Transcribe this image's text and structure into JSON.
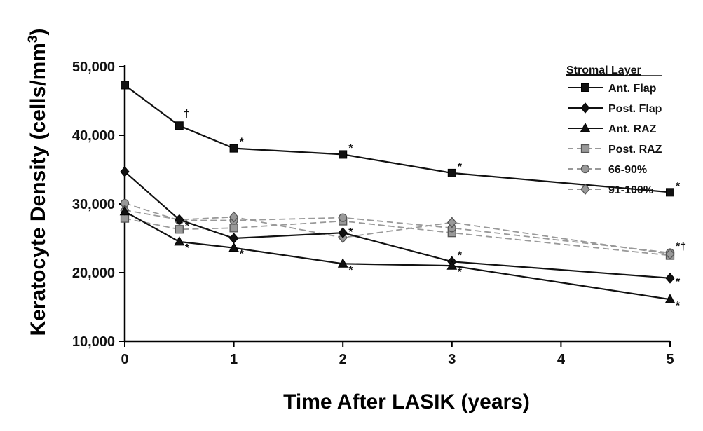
{
  "chart_data": {
    "type": "line",
    "ylabel": "Keratocyte Density (cells/mm",
    "ylabel_sup": "3",
    "ylabel_close": ")",
    "xlabel": "Time After LASIK (years)",
    "xlim": [
      0,
      5
    ],
    "ylim": [
      10000,
      50000
    ],
    "xticks": [
      0,
      1,
      2,
      3,
      4,
      5
    ],
    "xtick_labels": [
      "0",
      "1",
      "2",
      "3",
      "4",
      "5"
    ],
    "yticks": [
      10000,
      20000,
      30000,
      40000,
      50000
    ],
    "ytick_labels": [
      "10,000",
      "20,000",
      "30,000",
      "40,000",
      "50,000"
    ],
    "grid": false,
    "legend": {
      "title": "Stromal Layer",
      "placement": "top-right"
    },
    "series": [
      {
        "name": "Ant. Flap",
        "marker": "square",
        "color": "#111111",
        "dashed": false,
        "x": [
          0,
          0.5,
          1,
          2,
          3,
          5
        ],
        "y": [
          47300,
          41400,
          38100,
          37200,
          34500,
          31700
        ],
        "annotations": [
          "",
          "†",
          "*",
          "*",
          "*",
          "*"
        ]
      },
      {
        "name": "Post. Flap",
        "marker": "diamond",
        "color": "#111111",
        "dashed": false,
        "x": [
          0,
          0.5,
          1,
          2,
          3,
          5
        ],
        "y": [
          34700,
          27700,
          25000,
          25800,
          21600,
          19200
        ],
        "annotations": [
          "",
          "*",
          "",
          "*",
          "*",
          "*"
        ]
      },
      {
        "name": "Ant. RAZ",
        "marker": "triangle",
        "color": "#111111",
        "dashed": false,
        "x": [
          0,
          0.5,
          1,
          2,
          3,
          5
        ],
        "y": [
          28900,
          24500,
          23600,
          21300,
          21000,
          16100
        ],
        "annotations": [
          "",
          "*",
          "*",
          "*",
          "*",
          "*"
        ]
      },
      {
        "name": "Post. RAZ",
        "marker": "square",
        "color": "#999999",
        "dashed": true,
        "x": [
          0,
          0.5,
          1,
          2,
          3,
          5
        ],
        "y": [
          27900,
          26300,
          26500,
          27500,
          25800,
          22500
        ],
        "annotations": [
          "",
          "",
          "",
          "",
          "",
          ""
        ]
      },
      {
        "name": "66-90%",
        "marker": "circle",
        "color": "#999999",
        "dashed": true,
        "x": [
          0,
          0.5,
          1,
          2,
          3,
          5
        ],
        "y": [
          30100,
          27600,
          27600,
          28000,
          26500,
          22900
        ],
        "annotations": [
          "",
          "",
          "",
          "",
          "",
          "*†"
        ]
      },
      {
        "name": "91-100%",
        "marker": "diamond",
        "color": "#999999",
        "dashed": true,
        "x": [
          0,
          0.5,
          1,
          2,
          3,
          5
        ],
        "y": [
          29100,
          27700,
          28100,
          25100,
          27300,
          22700
        ],
        "annotations": [
          "",
          "",
          "",
          "",
          "",
          ""
        ]
      }
    ]
  }
}
